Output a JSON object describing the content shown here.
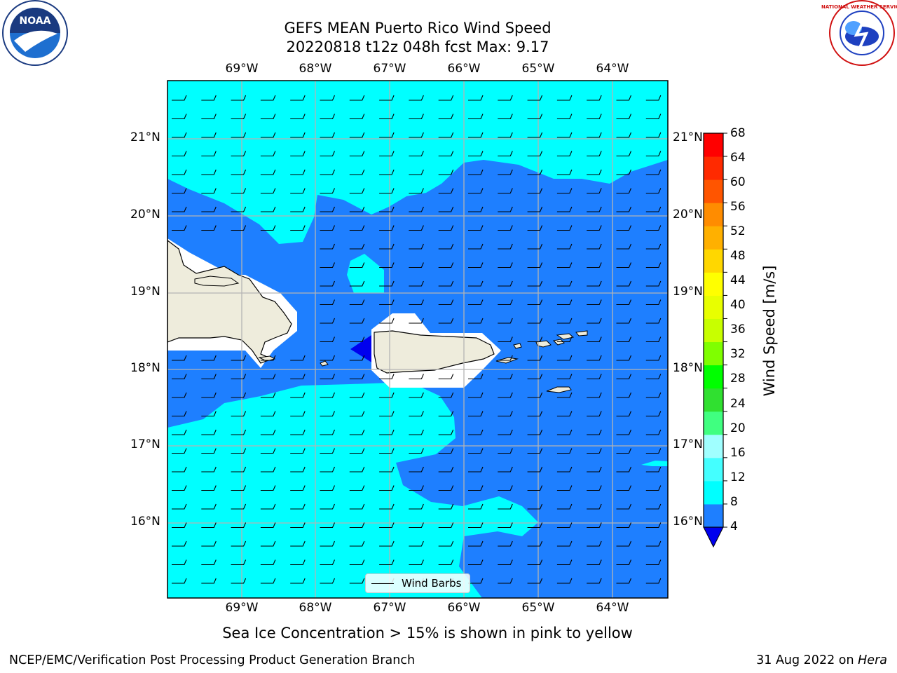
{
  "title_line1": "GEFS MEAN Puerto Rico Wind Speed",
  "title_line2": "20220818 t12z 048h fcst   Max: 9.17",
  "lon_labels": [
    "69°W",
    "68°W",
    "67°W",
    "66°W",
    "65°W",
    "64°W"
  ],
  "lat_labels": [
    "21°N",
    "20°N",
    "19°N",
    "18°N",
    "17°N",
    "16°N"
  ],
  "colorbar": {
    "label": "Wind Speed [m/s]",
    "ticks": [
      "68",
      "64",
      "60",
      "56",
      "52",
      "48",
      "44",
      "40",
      "36",
      "32",
      "28",
      "24",
      "20",
      "16",
      "12",
      "8",
      "4"
    ],
    "colors": [
      "#0000ee",
      "#1e7fff",
      "#00ffff",
      "#44ffff",
      "#a0ffff",
      "#40ff80",
      "#30e030",
      "#00ff00",
      "#7fff00",
      "#c8ff00",
      "#e8ff00",
      "#ffff00",
      "#ffd700",
      "#ffb000",
      "#ff8c00",
      "#ff5500",
      "#ff2a00",
      "#ff0000"
    ]
  },
  "legend_label": "Wind Barbs",
  "ice_note": "Sea Ice Concentration > 15% is shown in pink to yellow",
  "footer_left": "NCEP/EMC/Verification Post Processing Product Generation Branch",
  "footer_date": "31 Aug 2022 on ",
  "footer_host": "Hera",
  "logo_noaa": "NOAA",
  "logo_nws": "NATIONAL WEATHER SERVICE",
  "colors": {
    "land": "#eeecdc",
    "sea_light": "#00ffff",
    "sea_dark": "#1e7fff",
    "grid": "#b4b4b4"
  }
}
